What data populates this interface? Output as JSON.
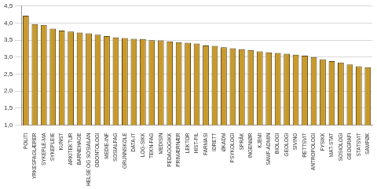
{
  "chart_data": {
    "type": "bar",
    "categories": [
      "POLITI",
      "YRKESFAGLÆRER",
      "SYKEPLE-MA",
      "SYKEPLEIE",
      "KUNST",
      "ARKITEKTUR",
      "BARNEHAGE",
      "HELSE OG SOSIALAN",
      "ODONTOLOGI",
      "MEDIE-INF",
      "SOSIALFAG",
      "GRUNNSKOLE",
      "DATA-IT",
      "LOG-SIKK",
      "TEKN-FAG",
      "MEDISIN",
      "PEDAGOGIKK",
      "PRIMÆRNÆR",
      "LEKTOR",
      "HIST-FIL",
      "FARMASI",
      "IDRETT",
      "ØKADM",
      "PSYKOLOGI",
      "SPRÅK",
      "INGENIØR",
      "KJEMI",
      "SAMF-ADMIN",
      "BIOLOGI",
      "GEOLOGI",
      "SIVING",
      "RETTSVIT",
      "ANTROPOLOGI",
      "FYSIKK",
      "MAT-STAT",
      "SOSIOLOGI",
      "GEOGRAFI",
      "STATSVIT",
      "SAMFØK"
    ],
    "values": [
      4.22,
      3.97,
      3.95,
      3.84,
      3.78,
      3.75,
      3.72,
      3.7,
      3.66,
      3.62,
      3.58,
      3.56,
      3.54,
      3.53,
      3.5,
      3.49,
      3.46,
      3.44,
      3.42,
      3.4,
      3.34,
      3.33,
      3.29,
      3.26,
      3.23,
      3.21,
      3.17,
      3.14,
      3.12,
      3.1,
      3.07,
      3.04,
      3.0,
      2.94,
      2.88,
      2.84,
      2.78,
      2.73,
      2.7
    ],
    "color": "#c89a2a",
    "ylim": [
      1.0,
      4.5
    ],
    "yticks": [
      {
        "value": 1.0,
        "label": "1,0"
      },
      {
        "value": 1.5,
        "label": "1,5"
      },
      {
        "value": 2.0,
        "label": "2,0"
      },
      {
        "value": 2.5,
        "label": "2,5"
      },
      {
        "value": 3.0,
        "label": "3,0"
      },
      {
        "value": 3.5,
        "label": "3,5"
      },
      {
        "value": 4.0,
        "label": "4,0"
      },
      {
        "value": 4.5,
        "label": "4,5"
      }
    ],
    "grid": true
  }
}
